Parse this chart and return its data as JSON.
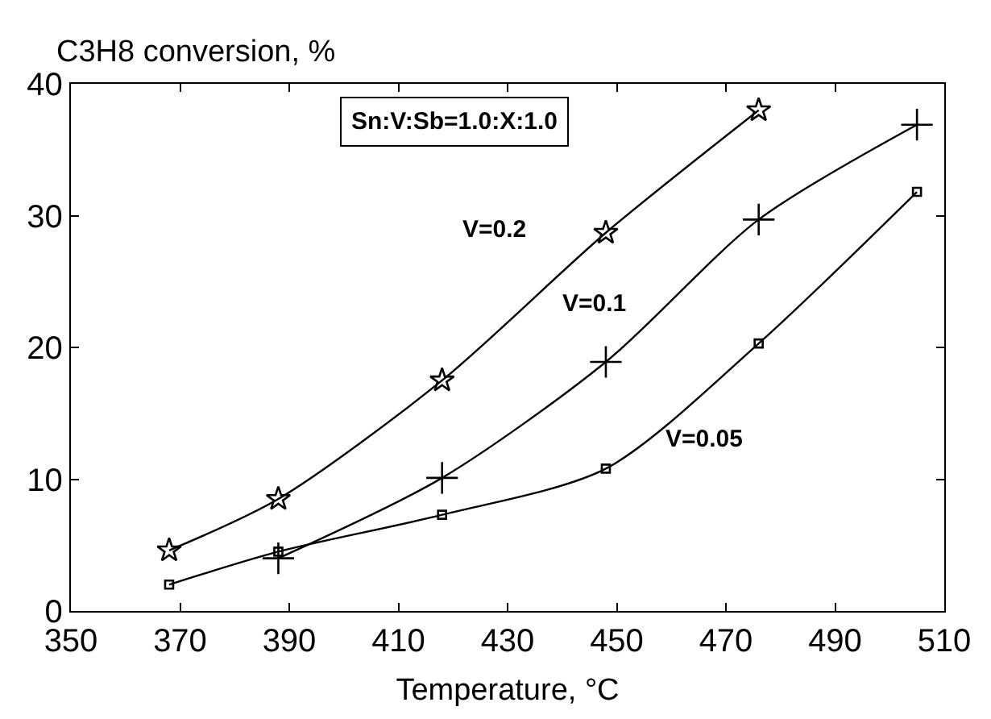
{
  "chart_data": {
    "type": "line",
    "xlabel": "Temperature, °C",
    "ylabel": "C3H8 conversion, %",
    "annotations": [
      "Sn:V:Sb=1.0:X:1.0"
    ],
    "series": [
      {
        "name": "V=0.2",
        "color": "#000000",
        "marker": "star",
        "x": [
          368,
          388,
          418,
          448,
          476
        ],
        "values": [
          4.6,
          8.5,
          17.5,
          28.7,
          38.0
        ]
      },
      {
        "name": "V=0.1",
        "color": "#000000",
        "marker": "cross",
        "x": [
          388,
          418,
          448,
          476,
          505
        ],
        "values": [
          4.0,
          10.1,
          18.9,
          29.7,
          36.9
        ]
      },
      {
        "name": "V=0.05",
        "color": "#000000",
        "marker": "square",
        "x": [
          368,
          388,
          418,
          448,
          476,
          505
        ],
        "values": [
          2.0,
          4.5,
          7.3,
          10.8,
          20.3,
          31.8
        ]
      }
    ],
    "xlim": [
      350,
      510
    ],
    "xticks": [
      350,
      370,
      390,
      410,
      430,
      450,
      470,
      490,
      510
    ],
    "ylim": [
      0,
      40
    ],
    "yticks": [
      0,
      10,
      20,
      30,
      40
    ],
    "legend": false,
    "line_style": "solid"
  }
}
